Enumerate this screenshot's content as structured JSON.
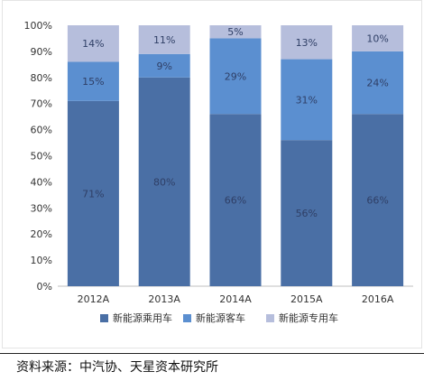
{
  "chart_data": {
    "type": "bar",
    "stacked": true,
    "categories": [
      "2012A",
      "2013A",
      "2014A",
      "2015A",
      "2016A"
    ],
    "series": [
      {
        "name": "新能源乘用车",
        "values": [
          71,
          80,
          66,
          56,
          66
        ],
        "color": "#4a6fa5"
      },
      {
        "name": "新能源客车",
        "values": [
          15,
          9,
          29,
          31,
          24
        ],
        "color": "#5b8fd0"
      },
      {
        "name": "新能源专用车",
        "values": [
          14,
          11,
          5,
          13,
          10
        ],
        "color": "#b6bedc"
      }
    ],
    "value_labels": [
      [
        "71%",
        "80%",
        "66%",
        "56%",
        "66%"
      ],
      [
        "15%",
        "9%",
        "29%",
        "31%",
        "24%"
      ],
      [
        "14%",
        "11%",
        "5%",
        "13%",
        "10%"
      ]
    ],
    "y_ticks": [
      "0%",
      "10%",
      "20%",
      "30%",
      "40%",
      "50%",
      "60%",
      "70%",
      "80%",
      "90%",
      "100%"
    ],
    "ylim": [
      0,
      100
    ],
    "grid": false,
    "legend_position": "bottom",
    "title": "",
    "xlabel": "",
    "ylabel": ""
  },
  "source_note": "资料来源：中汽协、天星资本研究所"
}
